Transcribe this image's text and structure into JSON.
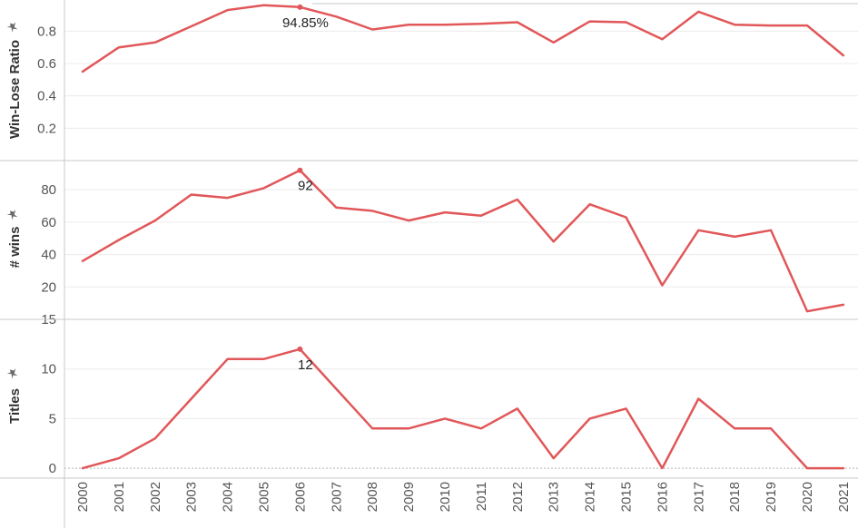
{
  "colors": {
    "series": "#e15759",
    "pin": "#6b6b6b"
  },
  "chart_data": {
    "type": "line",
    "x": [
      "2000",
      "2001",
      "2002",
      "2003",
      "2004",
      "2005",
      "2006",
      "2007",
      "2008",
      "2009",
      "2010",
      "2011",
      "2012",
      "2013",
      "2014",
      "2015",
      "2016",
      "2017",
      "2018",
      "2019",
      "2020",
      "2021"
    ],
    "panels": [
      {
        "ylabel": "Win-Lose Ratio",
        "ylim": [
          0,
          0.97
        ],
        "yticks": [
          0.2,
          0.4,
          0.6,
          0.8
        ],
        "tick_labels": [
          "0.2",
          "0.4",
          "0.6",
          "0.8"
        ],
        "values": [
          0.55,
          0.7,
          0.73,
          0.83,
          0.93,
          0.96,
          0.9485,
          0.89,
          0.81,
          0.84,
          0.84,
          0.845,
          0.855,
          0.73,
          0.86,
          0.855,
          0.75,
          0.92,
          0.84,
          0.835,
          0.835,
          0.65
        ],
        "annotation": {
          "x": "2006",
          "text": "94.85%"
        }
      },
      {
        "ylabel": "# wins",
        "ylim": [
          0,
          98
        ],
        "yticks": [
          20,
          40,
          60,
          80
        ],
        "tick_labels": [
          "20",
          "40",
          "60",
          "80"
        ],
        "values": [
          36,
          49,
          61,
          77,
          75,
          81,
          92,
          69,
          67,
          61,
          66,
          64,
          74,
          48,
          71,
          63,
          21,
          55,
          51,
          55,
          5,
          9
        ],
        "annotation": {
          "x": "2006",
          "text": "92"
        }
      },
      {
        "ylabel": "Titles",
        "ylim": [
          -1,
          15
        ],
        "yticks": [
          0,
          5,
          10,
          15
        ],
        "tick_labels": [
          "0",
          "5",
          "10",
          "15"
        ],
        "values": [
          0,
          1,
          3,
          7,
          11,
          11,
          12,
          8,
          4,
          4,
          5,
          4,
          6,
          1,
          5,
          6,
          0,
          7,
          4,
          4,
          0,
          0
        ],
        "annotation": {
          "x": "2006",
          "text": "12"
        }
      }
    ],
    "grid": true,
    "legend": "none"
  }
}
